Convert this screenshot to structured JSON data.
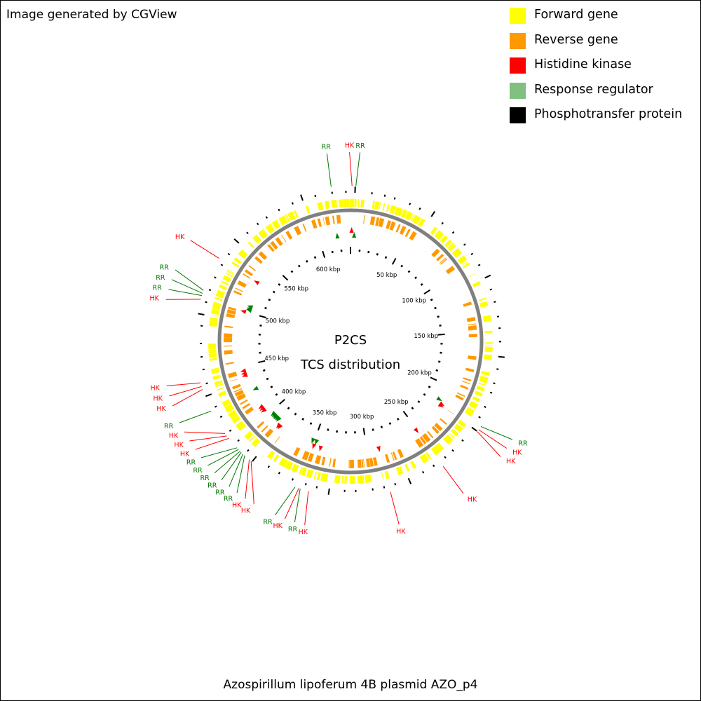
{
  "credit": "Image generated by CGView",
  "caption": "Azospirillum lipoferum 4B plasmid AZO_p4",
  "center_title_line1": "P2CS",
  "center_title_line2": "TCS distribution",
  "legend": [
    {
      "label": "Forward gene",
      "color": "#ffff00"
    },
    {
      "label": "Reverse gene",
      "color": "#ff9900"
    },
    {
      "label": "Histidine kinase",
      "color": "#ff0000"
    },
    {
      "label": "Response regulator",
      "color": "#80c080"
    },
    {
      "label": "Phosphotransfer protein",
      "color": "#000000"
    }
  ],
  "colors": {
    "forward": "#ffff00",
    "reverse": "#ff9900",
    "hk": "#ff0000",
    "rr_marker": "#008000",
    "rr_label": "#007700",
    "backbone": "#808080"
  },
  "plasmid_length_kbp": 630,
  "kbp_ticks": [
    {
      "kbp": 50,
      "label": "50 kbp"
    },
    {
      "kbp": 100,
      "label": "100 kbp"
    },
    {
      "kbp": 150,
      "label": "150 kbp"
    },
    {
      "kbp": 200,
      "label": "200 kbp"
    },
    {
      "kbp": 250,
      "label": "250 kbp"
    },
    {
      "kbp": 300,
      "label": "300 kbp"
    },
    {
      "kbp": 350,
      "label": "350 kbp"
    },
    {
      "kbp": 400,
      "label": "400 kbp"
    },
    {
      "kbp": 450,
      "label": "450 kbp"
    },
    {
      "kbp": 500,
      "label": "500 kbp"
    },
    {
      "kbp": 550,
      "label": "550 kbp"
    },
    {
      "kbp": 600,
      "label": "600 kbp"
    }
  ],
  "tcs_genes": [
    {
      "type": "HK",
      "kbp": 1.0,
      "label": "HK"
    },
    {
      "type": "RR",
      "kbp": 3.5,
      "label": "RR"
    },
    {
      "type": "RR",
      "kbp": 617.5,
      "label": "RR"
    },
    {
      "type": "RR",
      "kbp": 215.5,
      "label": "RR"
    },
    {
      "type": "HK",
      "kbp": 218.0,
      "label": "HK"
    },
    {
      "type": "HK",
      "kbp": 219.5,
      "label": "HK"
    },
    {
      "type": "HK",
      "kbp": 251.0,
      "label": "HK"
    },
    {
      "type": "HK",
      "kbp": 289.0,
      "label": "HK"
    },
    {
      "type": "HK",
      "kbp": 342.5,
      "label": "HK"
    },
    {
      "type": "RR",
      "kbp": 348.0,
      "label": "RR"
    },
    {
      "type": "HK",
      "kbp": 349.0,
      "label": "HK"
    },
    {
      "type": "RR",
      "kbp": 351.5,
      "label": "RR"
    },
    {
      "type": "HK",
      "kbp": 384.5,
      "label": "HK"
    },
    {
      "type": "HK",
      "kbp": 386.0,
      "label": "HK"
    },
    {
      "type": "RR",
      "kbp": 390.0,
      "label": "RR"
    },
    {
      "type": "RR",
      "kbp": 391.5,
      "label": "RR"
    },
    {
      "type": "RR",
      "kbp": 393.0,
      "label": "RR"
    },
    {
      "type": "RR",
      "kbp": 394.0,
      "label": "RR"
    },
    {
      "type": "RR",
      "kbp": 395.5,
      "label": "RR"
    },
    {
      "type": "RR",
      "kbp": 397.0,
      "label": "RR"
    },
    {
      "type": "HK",
      "kbp": 405.0,
      "label": "HK"
    },
    {
      "type": "HK",
      "kbp": 407.0,
      "label": "HK"
    },
    {
      "type": "HK",
      "kbp": 409.0,
      "label": "HK"
    },
    {
      "type": "RR",
      "kbp": 426.0,
      "label": "RR"
    },
    {
      "type": "HK",
      "kbp": 441.0,
      "label": "HK"
    },
    {
      "type": "HK",
      "kbp": 443.0,
      "label": "HK"
    },
    {
      "type": "HK",
      "kbp": 445.5,
      "label": "HK"
    },
    {
      "type": "HK",
      "kbp": 500.0,
      "label": "HK"
    },
    {
      "type": "RR",
      "kbp": 502.5,
      "label": "RR"
    },
    {
      "type": "RR",
      "kbp": 504.0,
      "label": "RR"
    },
    {
      "type": "RR",
      "kbp": 506.0,
      "label": "RR"
    },
    {
      "type": "HK",
      "kbp": 529.0,
      "label": "HK"
    }
  ]
}
